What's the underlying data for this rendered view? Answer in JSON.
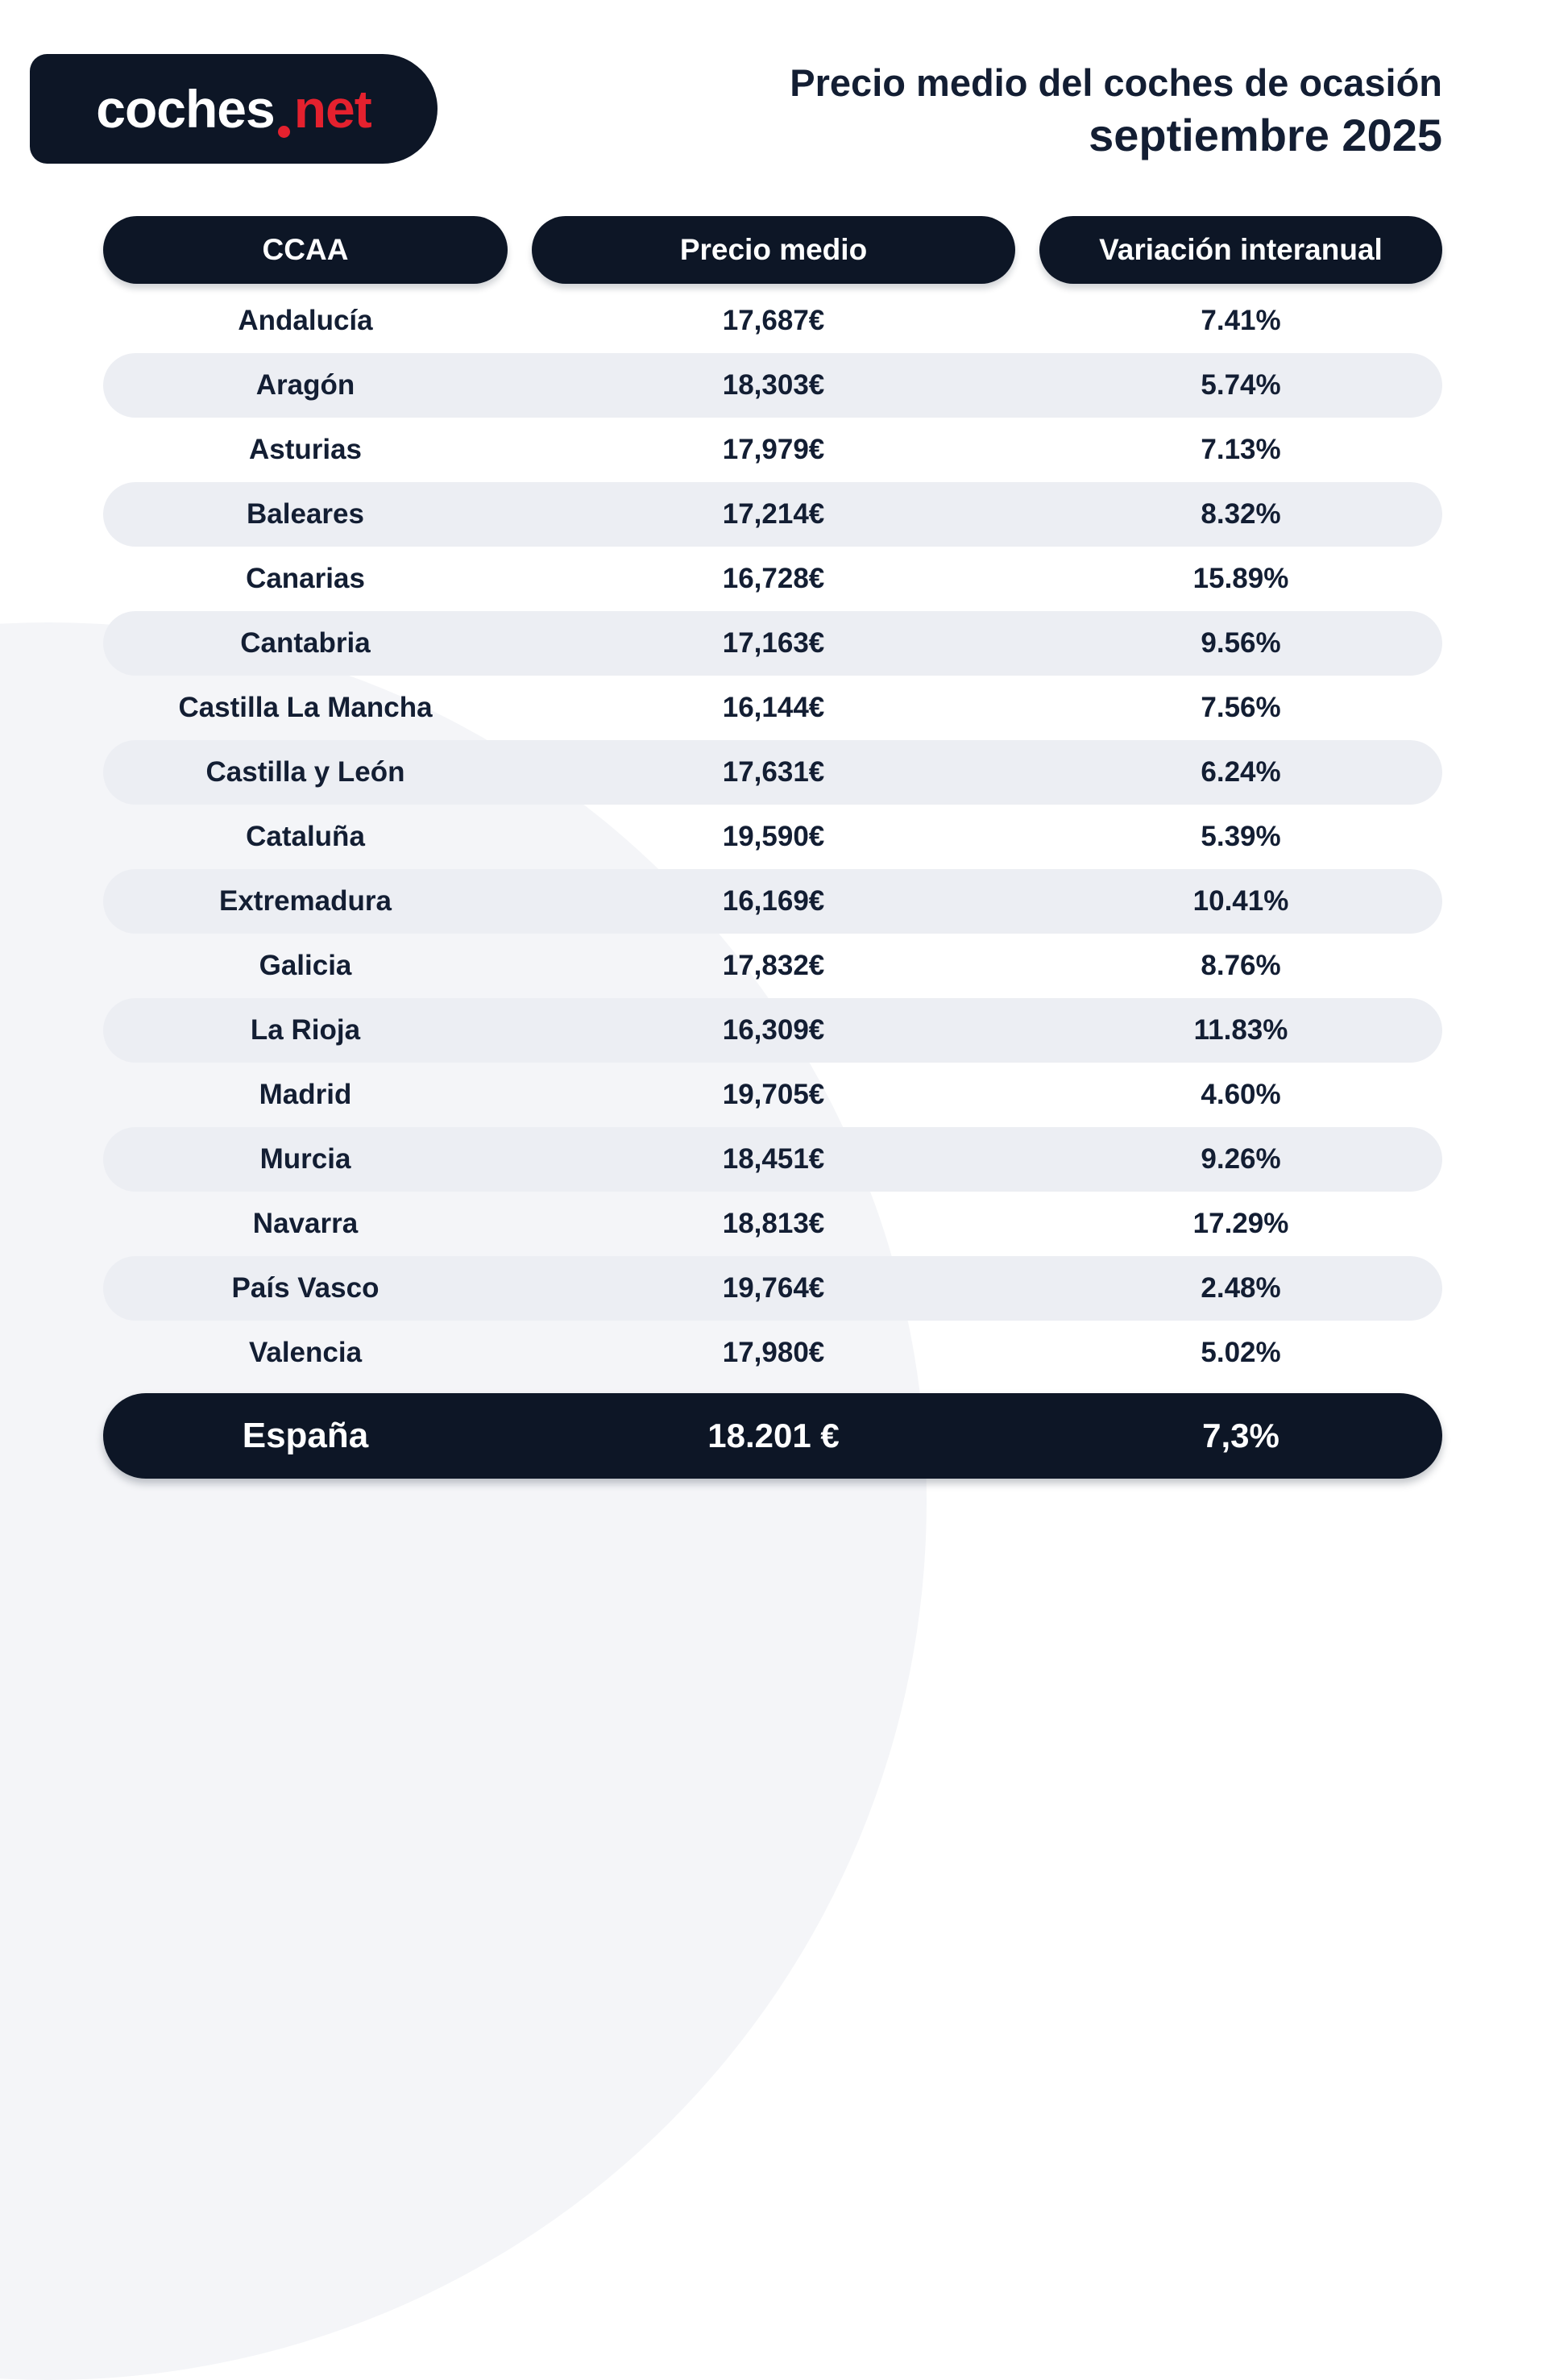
{
  "logo": {
    "text_primary": "coches",
    "text_secondary": "net"
  },
  "title": {
    "line1": "Precio medio del coches de ocasión",
    "line2": "septiembre 2025"
  },
  "table": {
    "headers": {
      "ccaa": "CCAA",
      "precio": "Precio medio",
      "variacion": "Variación interanual"
    },
    "rows": [
      {
        "ccaa": "Andalucía",
        "precio": "17,687€",
        "variacion": "7.41%"
      },
      {
        "ccaa": "Aragón",
        "precio": "18,303€",
        "variacion": "5.74%"
      },
      {
        "ccaa": "Asturias",
        "precio": "17,979€",
        "variacion": "7.13%"
      },
      {
        "ccaa": "Baleares",
        "precio": "17,214€",
        "variacion": "8.32%"
      },
      {
        "ccaa": "Canarias",
        "precio": "16,728€",
        "variacion": "15.89%"
      },
      {
        "ccaa": "Cantabria",
        "precio": "17,163€",
        "variacion": "9.56%"
      },
      {
        "ccaa": "Castilla La Mancha",
        "precio": "16,144€",
        "variacion": "7.56%"
      },
      {
        "ccaa": "Castilla y León",
        "precio": "17,631€",
        "variacion": "6.24%"
      },
      {
        "ccaa": "Cataluña",
        "precio": "19,590€",
        "variacion": "5.39%"
      },
      {
        "ccaa": "Extremadura",
        "precio": "16,169€",
        "variacion": "10.41%"
      },
      {
        "ccaa": "Galicia",
        "precio": "17,832€",
        "variacion": "8.76%"
      },
      {
        "ccaa": "La Rioja",
        "precio": "16,309€",
        "variacion": "11.83%"
      },
      {
        "ccaa": "Madrid",
        "precio": "19,705€",
        "variacion": "4.60%"
      },
      {
        "ccaa": "Murcia",
        "precio": "18,451€",
        "variacion": "9.26%"
      },
      {
        "ccaa": "Navarra",
        "precio": "18,813€",
        "variacion": "17.29%"
      },
      {
        "ccaa": "País Vasco",
        "precio": "19,764€",
        "variacion": "2.48%"
      },
      {
        "ccaa": "Valencia",
        "precio": "17,980€",
        "variacion": "5.02%"
      }
    ],
    "footer": {
      "ccaa": "España",
      "precio": "18.201 €",
      "variacion": "7,3%"
    }
  },
  "colors": {
    "navy": "#0d1626",
    "red": "#e4212e",
    "stripe": "#eceef3",
    "watermark": "#f4f5f8"
  },
  "chart_data": {
    "type": "table",
    "title": "Precio medio del coches de ocasión — septiembre 2025",
    "columns": [
      "CCAA",
      "Precio medio",
      "Variación interanual"
    ],
    "units": {
      "precio_medio": "EUR",
      "variacion_interanual": "%"
    },
    "rows": [
      [
        "Andalucía",
        17687,
        7.41
      ],
      [
        "Aragón",
        18303,
        5.74
      ],
      [
        "Asturias",
        17979,
        7.13
      ],
      [
        "Baleares",
        17214,
        8.32
      ],
      [
        "Canarias",
        16728,
        15.89
      ],
      [
        "Cantabria",
        17163,
        9.56
      ],
      [
        "Castilla La Mancha",
        16144,
        7.56
      ],
      [
        "Castilla y León",
        17631,
        6.24
      ],
      [
        "Cataluña",
        19590,
        5.39
      ],
      [
        "Extremadura",
        16169,
        10.41
      ],
      [
        "Galicia",
        17832,
        8.76
      ],
      [
        "La Rioja",
        16309,
        11.83
      ],
      [
        "Madrid",
        19705,
        4.6
      ],
      [
        "Murcia",
        18451,
        9.26
      ],
      [
        "Navarra",
        18813,
        17.29
      ],
      [
        "País Vasco",
        19764,
        2.48
      ],
      [
        "Valencia",
        17980,
        5.02
      ]
    ],
    "summary_row": [
      "España",
      18201,
      7.3
    ],
    "layout": {
      "striped_rows": true,
      "stripe_start_index": 1,
      "alignment": "center"
    }
  }
}
